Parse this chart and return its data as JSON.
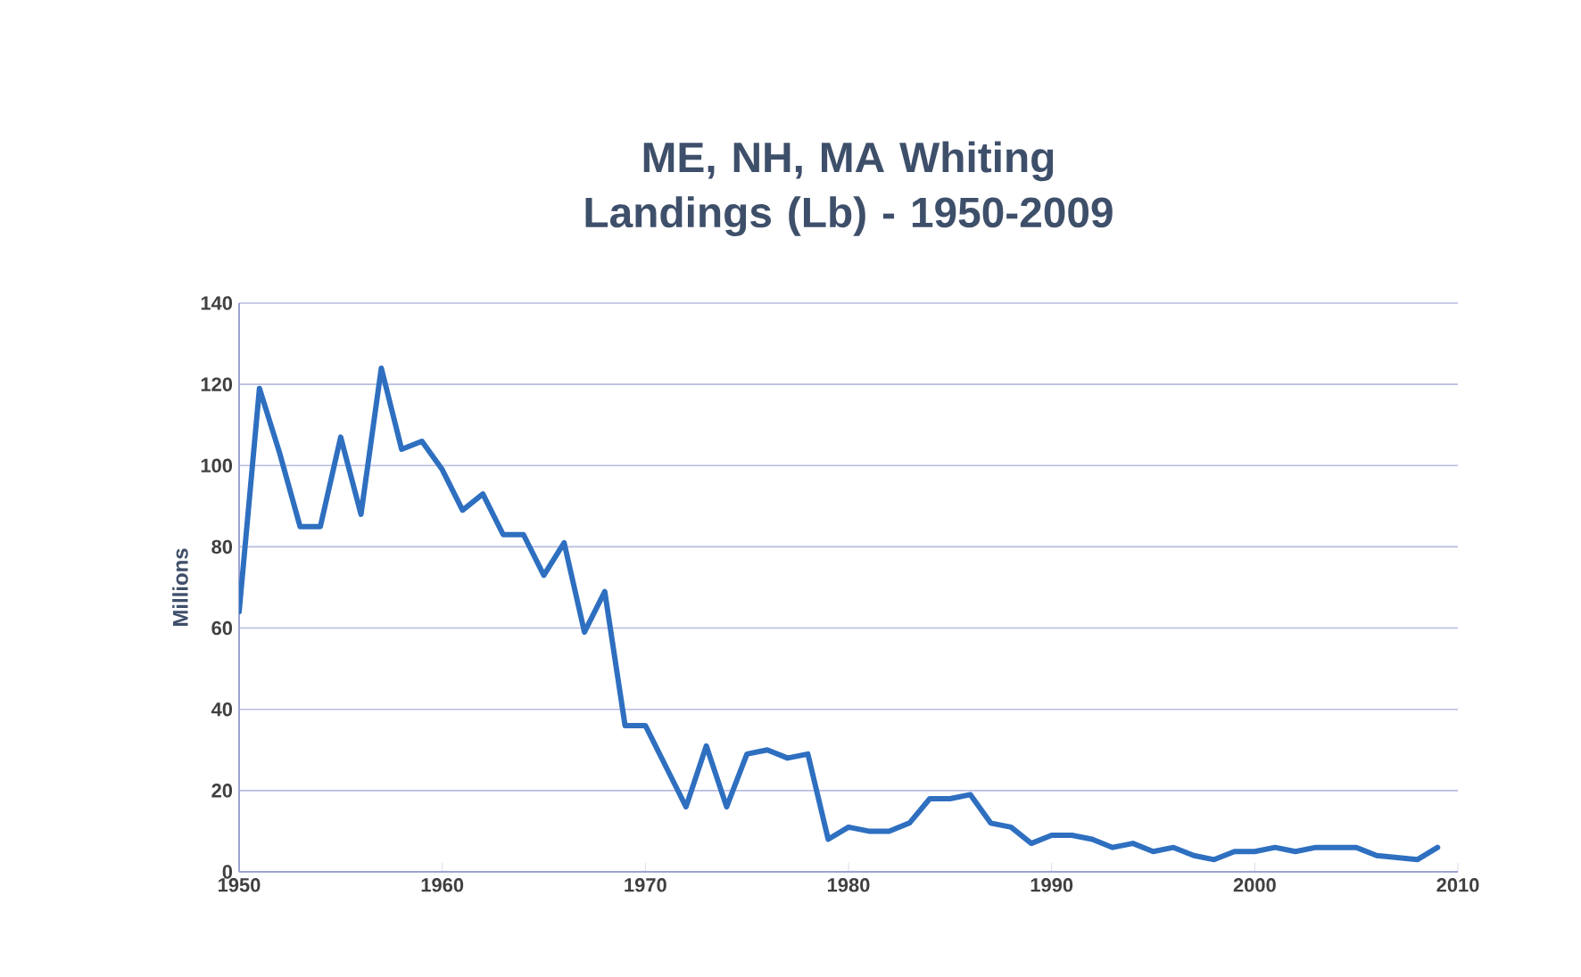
{
  "chart_data": {
    "type": "line",
    "title": "ME, NH, MA Whiting Landings (Lb) - 1950-2009",
    "ylabel": "Millions",
    "x": [
      1950,
      1951,
      1952,
      1953,
      1954,
      1955,
      1956,
      1957,
      1958,
      1959,
      1960,
      1961,
      1962,
      1963,
      1964,
      1965,
      1966,
      1967,
      1968,
      1969,
      1970,
      1971,
      1972,
      1973,
      1974,
      1975,
      1976,
      1977,
      1978,
      1979,
      1980,
      1981,
      1982,
      1983,
      1984,
      1985,
      1986,
      1987,
      1988,
      1989,
      1990,
      1991,
      1992,
      1993,
      1994,
      1995,
      1996,
      1997,
      1998,
      1999,
      2000,
      2001,
      2002,
      2003,
      2004,
      2005,
      2006,
      2007,
      2008,
      2009
    ],
    "series": [
      {
        "color": "#2e6fc0",
        "values": [
          64,
          119,
          103,
          85,
          85,
          107,
          88,
          124,
          104,
          106,
          99,
          89,
          93,
          83,
          83,
          73,
          81,
          59,
          69,
          36,
          36,
          26,
          16,
          31,
          16,
          29,
          30,
          28,
          29,
          8,
          11,
          10,
          10,
          12,
          18,
          18,
          19,
          12,
          11,
          7,
          9,
          9,
          8,
          6,
          7,
          5,
          6,
          4,
          3,
          5,
          5,
          6,
          5,
          6,
          6,
          6,
          4,
          3.5,
          3,
          6
        ]
      }
    ],
    "xlim": [
      1950,
      2010
    ],
    "xticks": [
      1950,
      1960,
      1970,
      1980,
      1990,
      2000,
      2010
    ],
    "ylim": [
      0,
      140
    ],
    "yticks": [
      0,
      20,
      40,
      60,
      80,
      100,
      120,
      140
    ],
    "grid": "y",
    "marker": "none",
    "line_style": "solid"
  }
}
